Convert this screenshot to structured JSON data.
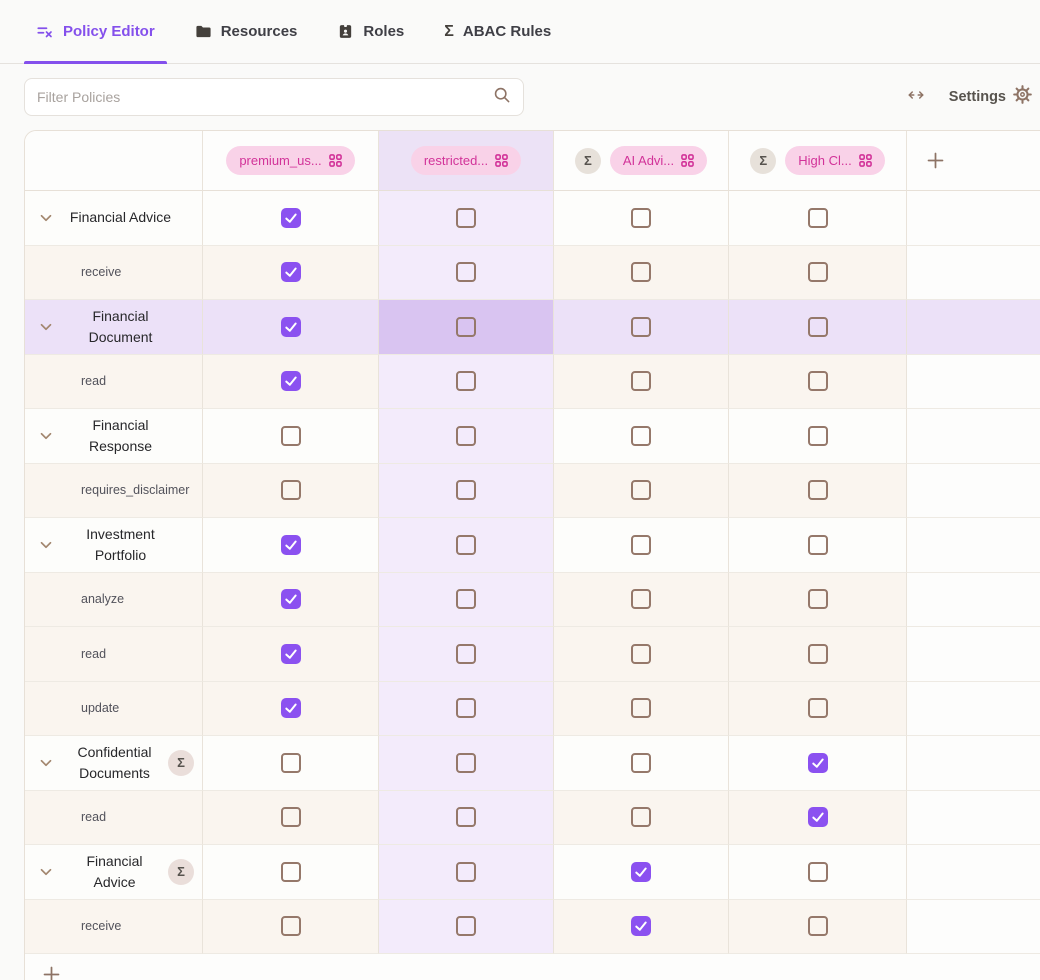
{
  "tabs": [
    {
      "label": "Policy Editor",
      "icon": "list-edit-icon",
      "active": true
    },
    {
      "label": "Resources",
      "icon": "folder-icon",
      "active": false
    },
    {
      "label": "Roles",
      "icon": "id-badge-icon",
      "active": false
    },
    {
      "label": "ABAC Rules",
      "icon": "sigma-icon",
      "active": false
    }
  ],
  "toolbar": {
    "filter_placeholder": "Filter Policies",
    "settings_label": "Settings"
  },
  "matrix": {
    "columns": [
      {
        "label": "premium_us...",
        "aggregate": false,
        "highlighted": false
      },
      {
        "label": "restricted...",
        "aggregate": false,
        "highlighted": true
      },
      {
        "label": "AI Advi...",
        "aggregate": true,
        "highlighted": false
      },
      {
        "label": "High Cl...",
        "aggregate": true,
        "highlighted": false
      }
    ],
    "rows": [
      {
        "type": "resource",
        "label": "Financial Advice",
        "aggregate": false,
        "selected": false,
        "checks": [
          true,
          false,
          false,
          false
        ]
      },
      {
        "type": "action",
        "label": "receive",
        "aggregate": false,
        "selected": false,
        "checks": [
          true,
          false,
          false,
          false
        ]
      },
      {
        "type": "resource",
        "label": "Financial Document",
        "aggregate": false,
        "selected": true,
        "checks": [
          true,
          false,
          false,
          false
        ]
      },
      {
        "type": "action",
        "label": "read",
        "aggregate": false,
        "selected": false,
        "checks": [
          true,
          false,
          false,
          false
        ]
      },
      {
        "type": "resource",
        "label": "Financial Response",
        "aggregate": false,
        "selected": false,
        "checks": [
          false,
          false,
          false,
          false
        ]
      },
      {
        "type": "action",
        "label": "requires_disclaimer",
        "aggregate": false,
        "selected": false,
        "checks": [
          false,
          false,
          false,
          false
        ]
      },
      {
        "type": "resource",
        "label": "Investment Portfolio",
        "aggregate": false,
        "selected": false,
        "checks": [
          true,
          false,
          false,
          false
        ]
      },
      {
        "type": "action",
        "label": "analyze",
        "aggregate": false,
        "selected": false,
        "checks": [
          true,
          false,
          false,
          false
        ]
      },
      {
        "type": "action",
        "label": "read",
        "aggregate": false,
        "selected": false,
        "checks": [
          true,
          false,
          false,
          false
        ]
      },
      {
        "type": "action",
        "label": "update",
        "aggregate": false,
        "selected": false,
        "checks": [
          true,
          false,
          false,
          false
        ]
      },
      {
        "type": "resource",
        "label": "Confidential Documents",
        "aggregate": true,
        "selected": false,
        "checks": [
          false,
          false,
          false,
          true
        ]
      },
      {
        "type": "action",
        "label": "read",
        "aggregate": false,
        "selected": false,
        "checks": [
          false,
          false,
          false,
          true
        ]
      },
      {
        "type": "resource",
        "label": "Financial Advice",
        "aggregate": true,
        "selected": false,
        "checks": [
          false,
          false,
          true,
          false
        ]
      },
      {
        "type": "action",
        "label": "receive",
        "aggregate": false,
        "selected": false,
        "checks": [
          false,
          false,
          true,
          false
        ]
      }
    ],
    "sigma_symbol": "Σ"
  },
  "colors": {
    "accent": "#8450ec",
    "accent-check": "#8b51f0",
    "pill-bg": "#f9d2e8",
    "pill-text": "#d23399",
    "row-selected": "#ece1f8",
    "col-highlight": "#f3ebfb",
    "intersect": "#d9c4f1",
    "child-row-bg": "#faf5ef",
    "unchecked-border": "#95786a",
    "icon-brown": "#8d7365"
  }
}
